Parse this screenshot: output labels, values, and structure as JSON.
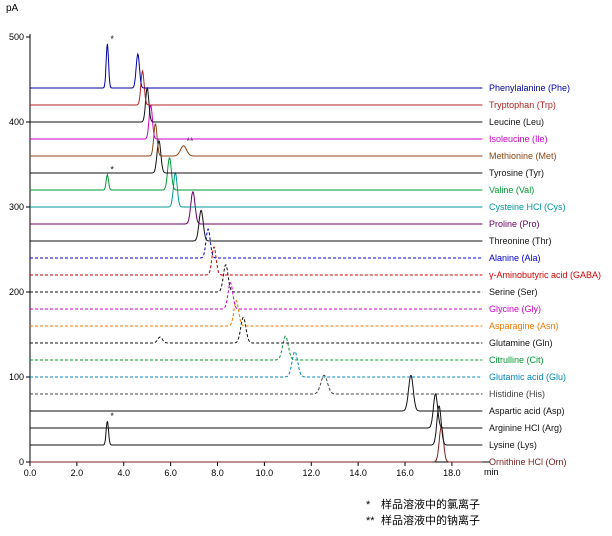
{
  "page": {
    "background": "#ffffff"
  },
  "footnotes": [
    {
      "symbol": "*",
      "text": "样品溶液中的氯离子"
    },
    {
      "symbol": "**",
      "text": "样品溶液中的钠离子"
    }
  ],
  "chart_data": {
    "type": "line",
    "title": "",
    "xlabel": "min",
    "ylabel": "pA",
    "xlim": [
      0,
      19.3
    ],
    "ylim": [
      0,
      520
    ],
    "grid": false,
    "legend_position": "right",
    "offset_step_pA": 20,
    "x_ticks": [
      {
        "value": 0,
        "label": "0.0"
      },
      {
        "value": 2,
        "label": "2.0"
      },
      {
        "value": 4,
        "label": "4.0"
      },
      {
        "value": 6,
        "label": "6.0"
      },
      {
        "value": 8,
        "label": "8.0"
      },
      {
        "value": 10,
        "label": "10.0"
      },
      {
        "value": 12,
        "label": "12.0"
      },
      {
        "value": 14,
        "label": "14.0"
      },
      {
        "value": 16,
        "label": "16.0"
      },
      {
        "value": 18,
        "label": "18.0"
      }
    ],
    "y_ticks": [
      {
        "value": 0,
        "label": "0"
      },
      {
        "value": 100,
        "label": "100"
      },
      {
        "value": 200,
        "label": "200"
      },
      {
        "value": 300,
        "label": "300"
      },
      {
        "value": 400,
        "label": "400"
      },
      {
        "value": 500,
        "label": "500"
      }
    ],
    "series": [
      {
        "id": "phe",
        "name": "Phenylalanine (Phe)",
        "color": "#0000A0",
        "dashed": false,
        "offset_pA": 440,
        "peaks": [
          {
            "t_min": 3.3,
            "height_pA": 52,
            "sigma_min": 0.05,
            "marker": "*"
          },
          {
            "t_min": 4.6,
            "height_pA": 40,
            "sigma_min": 0.07
          }
        ]
      },
      {
        "id": "trp",
        "name": "Tryptophan (Trp)",
        "color": "#B22222",
        "dashed": false,
        "offset_pA": 420,
        "peaks": [
          {
            "t_min": 4.8,
            "height_pA": 40,
            "sigma_min": 0.07
          }
        ]
      },
      {
        "id": "leu",
        "name": "Leucine (Leu)",
        "color": "#111111",
        "dashed": false,
        "offset_pA": 400,
        "peaks": [
          {
            "t_min": 5.0,
            "height_pA": 40,
            "sigma_min": 0.07
          }
        ]
      },
      {
        "id": "ile",
        "name": "Isoleucine (Ile)",
        "color": "#CC00CC",
        "dashed": false,
        "offset_pA": 380,
        "peaks": [
          {
            "t_min": 5.15,
            "height_pA": 40,
            "sigma_min": 0.07
          }
        ]
      },
      {
        "id": "met",
        "name": "Methionine (Met)",
        "color": "#8B4513",
        "dashed": false,
        "offset_pA": 360,
        "peaks": [
          {
            "t_min": 5.35,
            "height_pA": 38,
            "sigma_min": 0.07
          },
          {
            "t_min": 6.55,
            "height_pA": 12,
            "sigma_min": 0.13,
            "marker": "**"
          }
        ]
      },
      {
        "id": "tyr",
        "name": "Tyrosine (Tyr)",
        "color": "#111111",
        "dashed": false,
        "offset_pA": 340,
        "peaks": [
          {
            "t_min": 5.5,
            "height_pA": 38,
            "sigma_min": 0.08
          }
        ]
      },
      {
        "id": "val",
        "name": "Valine (Val)",
        "color": "#009933",
        "dashed": false,
        "offset_pA": 320,
        "peaks": [
          {
            "t_min": 3.3,
            "height_pA": 18,
            "sigma_min": 0.05,
            "marker": "*"
          },
          {
            "t_min": 5.95,
            "height_pA": 38,
            "sigma_min": 0.08
          }
        ]
      },
      {
        "id": "cys",
        "name": "Cysteine HCl (Cys)",
        "color": "#009999",
        "dashed": false,
        "offset_pA": 300,
        "peaks": [
          {
            "t_min": 6.2,
            "height_pA": 40,
            "sigma_min": 0.08
          }
        ]
      },
      {
        "id": "pro",
        "name": "Proline (Pro)",
        "color": "#660066",
        "dashed": false,
        "offset_pA": 280,
        "peaks": [
          {
            "t_min": 6.95,
            "height_pA": 38,
            "sigma_min": 0.09
          }
        ]
      },
      {
        "id": "thr",
        "name": "Threonine (Thr)",
        "color": "#111111",
        "dashed": false,
        "offset_pA": 260,
        "peaks": [
          {
            "t_min": 7.3,
            "height_pA": 36,
            "sigma_min": 0.09
          }
        ]
      },
      {
        "id": "ala",
        "name": "Alanine (Ala)",
        "color": "#0000CC",
        "dashed": true,
        "offset_pA": 240,
        "peaks": [
          {
            "t_min": 7.6,
            "height_pA": 34,
            "sigma_min": 0.09
          }
        ]
      },
      {
        "id": "gaba",
        "name": "γ-Aminobutyric acid (GABA)",
        "color": "#CC0000",
        "dashed": true,
        "offset_pA": 220,
        "peaks": [
          {
            "t_min": 7.85,
            "height_pA": 33,
            "sigma_min": 0.09
          }
        ]
      },
      {
        "id": "ser",
        "name": "Serine (Ser)",
        "color": "#111111",
        "dashed": true,
        "offset_pA": 200,
        "peaks": [
          {
            "t_min": 8.35,
            "height_pA": 32,
            "sigma_min": 0.1
          }
        ]
      },
      {
        "id": "gly",
        "name": "Glycine (Gly)",
        "color": "#CC00CC",
        "dashed": true,
        "offset_pA": 180,
        "peaks": [
          {
            "t_min": 8.55,
            "height_pA": 31,
            "sigma_min": 0.1
          }
        ]
      },
      {
        "id": "asn",
        "name": "Asparagine (Asn)",
        "color": "#EE7700",
        "dashed": true,
        "offset_pA": 160,
        "peaks": [
          {
            "t_min": 8.8,
            "height_pA": 30,
            "sigma_min": 0.1
          }
        ]
      },
      {
        "id": "gln",
        "name": "Glutamine (Gln)",
        "color": "#111111",
        "dashed": true,
        "offset_pA": 140,
        "peaks": [
          {
            "t_min": 5.55,
            "height_pA": 7,
            "sigma_min": 0.1
          },
          {
            "t_min": 9.1,
            "height_pA": 30,
            "sigma_min": 0.11
          }
        ]
      },
      {
        "id": "cit",
        "name": "Citrulline (Cit)",
        "color": "#009933",
        "dashed": true,
        "offset_pA": 120,
        "peaks": [
          {
            "t_min": 10.9,
            "height_pA": 28,
            "sigma_min": 0.12
          }
        ]
      },
      {
        "id": "glu",
        "name": "Glutamic acid (Glu)",
        "color": "#0088BB",
        "dashed": true,
        "offset_pA": 100,
        "peaks": [
          {
            "t_min": 11.3,
            "height_pA": 30,
            "sigma_min": 0.12
          }
        ]
      },
      {
        "id": "his",
        "name": "Histidine (His)",
        "color": "#444444",
        "dashed": true,
        "offset_pA": 80,
        "peaks": [
          {
            "t_min": 12.55,
            "height_pA": 22,
            "sigma_min": 0.14
          }
        ]
      },
      {
        "id": "asp",
        "name": "Aspartic acid (Asp)",
        "color": "#111111",
        "dashed": false,
        "offset_pA": 60,
        "peaks": [
          {
            "t_min": 16.25,
            "height_pA": 42,
            "sigma_min": 0.1
          }
        ]
      },
      {
        "id": "arg",
        "name": "Arginine HCl (Arg)",
        "color": "#111111",
        "dashed": false,
        "offset_pA": 40,
        "peaks": [
          {
            "t_min": 17.3,
            "height_pA": 40,
            "sigma_min": 0.09
          }
        ]
      },
      {
        "id": "lys",
        "name": "Lysine (Lys)",
        "color": "#111111",
        "dashed": false,
        "offset_pA": 20,
        "peaks": [
          {
            "t_min": 3.3,
            "height_pA": 28,
            "sigma_min": 0.05,
            "marker": "*"
          },
          {
            "t_min": 17.45,
            "height_pA": 46,
            "sigma_min": 0.09
          }
        ]
      },
      {
        "id": "orn",
        "name": "Ornithine HCl (Orn)",
        "color": "#7B2222",
        "dashed": false,
        "offset_pA": 0,
        "peaks": [
          {
            "t_min": 17.55,
            "height_pA": 42,
            "sigma_min": 0.09
          }
        ]
      }
    ]
  }
}
